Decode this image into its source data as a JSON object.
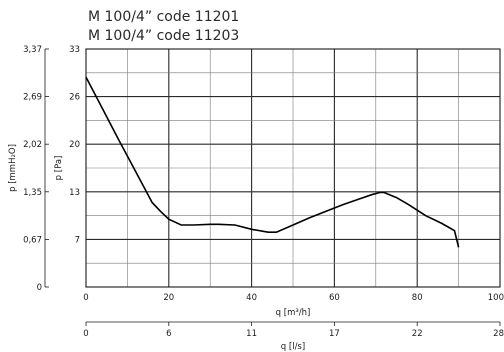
{
  "title_lines": [
    "M 100/4” code 11201",
    "M 100/4” code 11203"
  ],
  "chart_data": {
    "type": "line",
    "x_label": "q [m³/h]",
    "x_ticks": [
      "0",
      "20",
      "40",
      "60",
      "80",
      "100"
    ],
    "x_range": [
      0,
      100
    ],
    "y_label": "p [Pa]",
    "y_ticks": [
      "7",
      "13",
      "20",
      "26",
      "33"
    ],
    "y_range": [
      0,
      33
    ],
    "y2_label": "p [mmH₂O]",
    "y2_ticks": [
      "0",
      "0,67",
      "1,35",
      "2,02",
      "2,69",
      "3,37"
    ],
    "x2_label": "q [l/s]",
    "x2_ticks": [
      "0",
      "6",
      "11",
      "17",
      "22",
      "28"
    ],
    "grid": true,
    "series": [
      {
        "x": [
          0,
          4,
          8,
          12,
          16,
          18,
          20,
          23,
          26,
          30,
          32,
          36,
          40,
          44,
          46,
          50,
          54,
          58,
          62,
          66,
          69,
          71,
          72,
          75,
          78,
          82,
          86,
          89,
          90
        ],
        "y": [
          29.1,
          24.7,
          20.3,
          16.0,
          11.7,
          10.5,
          9.4,
          8.6,
          8.6,
          8.7,
          8.7,
          8.6,
          8.0,
          7.6,
          7.6,
          8.6,
          9.6,
          10.5,
          11.4,
          12.2,
          12.8,
          13.1,
          13.1,
          12.4,
          11.4,
          9.9,
          8.8,
          7.8,
          5.5
        ]
      }
    ]
  }
}
